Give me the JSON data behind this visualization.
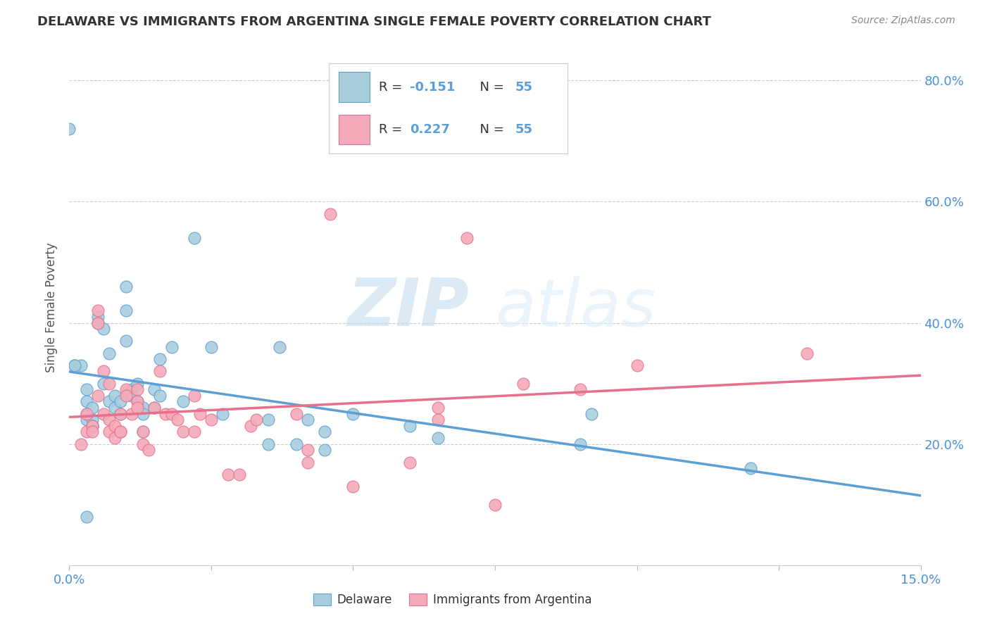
{
  "title": "DELAWARE VS IMMIGRANTS FROM ARGENTINA SINGLE FEMALE POVERTY CORRELATION CHART",
  "source": "Source: ZipAtlas.com",
  "ylabel": "Single Female Poverty",
  "ylabel_ticks": [
    "20.0%",
    "40.0%",
    "60.0%",
    "80.0%"
  ],
  "xlim": [
    0.0,
    0.15
  ],
  "ylim": [
    0.0,
    0.85
  ],
  "legend_label1": "Delaware",
  "legend_label2": "Immigrants from Argentina",
  "r1": -0.151,
  "n1": 55,
  "r2": 0.227,
  "n2": 55,
  "color_blue": "#A8CEDE",
  "color_pink": "#F4AABB",
  "line_color_blue": "#5B9FD4",
  "line_color_pink": "#E8708A",
  "watermark_zip": "ZIP",
  "watermark_atlas": "atlas",
  "blue_x": [
    0.001,
    0.002,
    0.003,
    0.003,
    0.003,
    0.003,
    0.004,
    0.004,
    0.004,
    0.004,
    0.005,
    0.005,
    0.006,
    0.006,
    0.007,
    0.007,
    0.008,
    0.008,
    0.009,
    0.009,
    0.01,
    0.01,
    0.01,
    0.011,
    0.011,
    0.012,
    0.012,
    0.013,
    0.013,
    0.013,
    0.015,
    0.015,
    0.016,
    0.016,
    0.018,
    0.02,
    0.022,
    0.025,
    0.027,
    0.035,
    0.035,
    0.037,
    0.04,
    0.042,
    0.045,
    0.045,
    0.05,
    0.06,
    0.065,
    0.09,
    0.092,
    0.12,
    0.0,
    0.003,
    0.001
  ],
  "blue_y": [
    0.33,
    0.33,
    0.29,
    0.27,
    0.25,
    0.24,
    0.24,
    0.23,
    0.23,
    0.26,
    0.41,
    0.4,
    0.39,
    0.3,
    0.35,
    0.27,
    0.28,
    0.26,
    0.25,
    0.27,
    0.46,
    0.42,
    0.37,
    0.29,
    0.28,
    0.3,
    0.27,
    0.26,
    0.25,
    0.22,
    0.29,
    0.26,
    0.34,
    0.28,
    0.36,
    0.27,
    0.54,
    0.36,
    0.25,
    0.24,
    0.2,
    0.36,
    0.2,
    0.24,
    0.22,
    0.19,
    0.25,
    0.23,
    0.21,
    0.2,
    0.25,
    0.16,
    0.72,
    0.08,
    0.33
  ],
  "pink_x": [
    0.002,
    0.003,
    0.003,
    0.004,
    0.004,
    0.005,
    0.005,
    0.005,
    0.006,
    0.006,
    0.007,
    0.007,
    0.007,
    0.008,
    0.008,
    0.009,
    0.009,
    0.009,
    0.01,
    0.01,
    0.011,
    0.012,
    0.012,
    0.012,
    0.013,
    0.013,
    0.014,
    0.015,
    0.016,
    0.017,
    0.018,
    0.019,
    0.02,
    0.022,
    0.022,
    0.023,
    0.025,
    0.028,
    0.03,
    0.032,
    0.033,
    0.04,
    0.042,
    0.042,
    0.046,
    0.05,
    0.06,
    0.065,
    0.065,
    0.07,
    0.075,
    0.08,
    0.09,
    0.1,
    0.13
  ],
  "pink_y": [
    0.2,
    0.25,
    0.22,
    0.23,
    0.22,
    0.42,
    0.4,
    0.28,
    0.32,
    0.25,
    0.3,
    0.24,
    0.22,
    0.23,
    0.21,
    0.25,
    0.22,
    0.22,
    0.29,
    0.28,
    0.25,
    0.29,
    0.27,
    0.26,
    0.22,
    0.2,
    0.19,
    0.26,
    0.32,
    0.25,
    0.25,
    0.24,
    0.22,
    0.22,
    0.28,
    0.25,
    0.24,
    0.15,
    0.15,
    0.23,
    0.24,
    0.25,
    0.19,
    0.17,
    0.58,
    0.13,
    0.17,
    0.26,
    0.24,
    0.54,
    0.1,
    0.3,
    0.29,
    0.33,
    0.35
  ]
}
